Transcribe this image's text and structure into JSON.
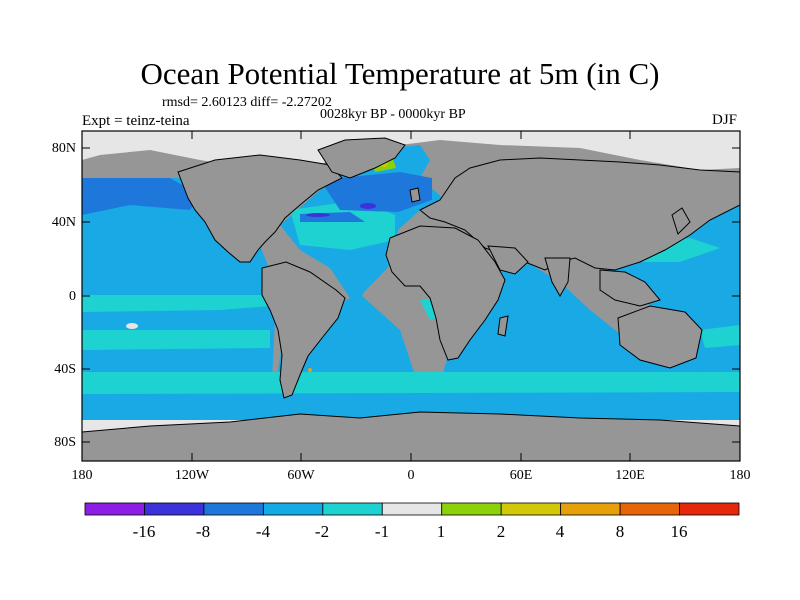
{
  "title": "Ocean Potential Temperature at 5m (in C)",
  "stats": "rmsd= 2.60123  diff= -2.27202",
  "period": "0028kyr BP - 0000kyr BP",
  "experiment": "Expt = teinz-teina",
  "season": "DJF",
  "lat_labels": [
    "80N",
    "40N",
    "0",
    "40S",
    "80S"
  ],
  "lon_labels": [
    "180",
    "120W",
    "60W",
    "0",
    "60E",
    "120E",
    "180"
  ],
  "colorbar": {
    "labels": [
      "-16",
      "-8",
      "-4",
      "-2",
      "-1",
      "1",
      "2",
      "4",
      "8",
      "16"
    ],
    "colors": [
      "#8d1ee6",
      "#3c32dc",
      "#1e78dc",
      "#14aae6",
      "#1ed2d2",
      "#e6e6e6",
      "#8cd20a",
      "#d2c80a",
      "#e6a00a",
      "#e6640a",
      "#e6280a"
    ]
  },
  "colors": {
    "land": "#969696",
    "ocean": "#19a9e5",
    "deep_cool": "#1e78dc",
    "light_cool": "#1fd2d2",
    "ice": "#e6e6e6"
  }
}
